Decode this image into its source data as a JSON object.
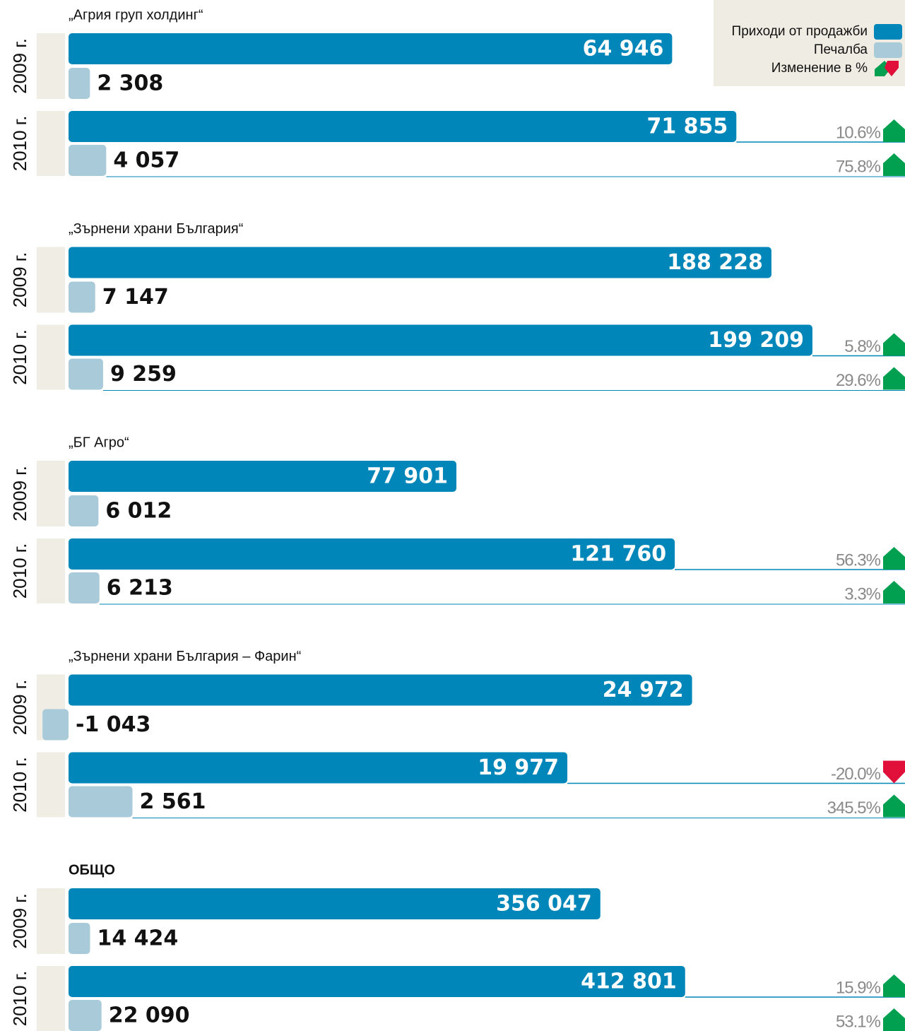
{
  "chart_data": {
    "type": "bar",
    "series": [
      {
        "name": "Приходи от продажби",
        "color": "#0086b8"
      },
      {
        "name": "Печалба",
        "color": "#a9cbd9"
      }
    ],
    "change_label": "Изменение в %",
    "up_color": "#00a050",
    "down_color": "#e0103a",
    "years": [
      "2009 г.",
      "2010 г."
    ],
    "groups": [
      {
        "title": "„Агрия груп холдинг“",
        "xlim": [
          0,
          90000
        ],
        "revenue": [
          64946,
          71855
        ],
        "revenue_labels": [
          "64 946",
          "71 855"
        ],
        "profit": [
          2308,
          4057
        ],
        "profit_labels": [
          "2 308",
          "4 057"
        ],
        "revenue_change": 10.6,
        "revenue_change_label": "10.6%",
        "profit_change": 75.8,
        "profit_change_label": "75.8%"
      },
      {
        "title": "„Зърнени храни България“",
        "xlim": [
          0,
          224000
        ],
        "revenue": [
          188228,
          199209
        ],
        "revenue_labels": [
          "188 228",
          "199 209"
        ],
        "profit": [
          7147,
          9259
        ],
        "profit_labels": [
          "7 147",
          "9 259"
        ],
        "revenue_change": 5.8,
        "revenue_change_label": "5.8%",
        "profit_change": 29.6,
        "profit_change_label": "29.6%"
      },
      {
        "title": "„БГ Агро“",
        "xlim": [
          0,
          168000
        ],
        "revenue": [
          77901,
          121760
        ],
        "revenue_labels": [
          "77 901",
          "121 760"
        ],
        "profit": [
          6012,
          6213
        ],
        "profit_labels": [
          "6 012",
          "6 213"
        ],
        "revenue_change": 56.3,
        "revenue_change_label": "56.3%",
        "profit_change": 3.3,
        "profit_change_label": "3.3%"
      },
      {
        "title": "„Зърнени храни България – Фарин“",
        "xlim": [
          0,
          33500
        ],
        "revenue": [
          24972,
          19977
        ],
        "revenue_labels": [
          "24 972",
          "19 977"
        ],
        "profit": [
          -1043,
          2561
        ],
        "profit_labels": [
          "-1 043",
          "2 561"
        ],
        "revenue_change": -20.0,
        "revenue_change_label": "-20.0%",
        "profit_change": 345.5,
        "profit_change_label": "345.5%"
      },
      {
        "title": "ОБЩО",
        "xlim": [
          0,
          560000
        ],
        "revenue": [
          356047,
          412801
        ],
        "revenue_labels": [
          "356 047",
          "412 801"
        ],
        "profit": [
          14424,
          22090
        ],
        "profit_labels": [
          "14 424",
          "22 090"
        ],
        "revenue_change": 15.9,
        "revenue_change_label": "15.9%",
        "profit_change": 53.1,
        "profit_change_label": "53.1%"
      }
    ]
  }
}
